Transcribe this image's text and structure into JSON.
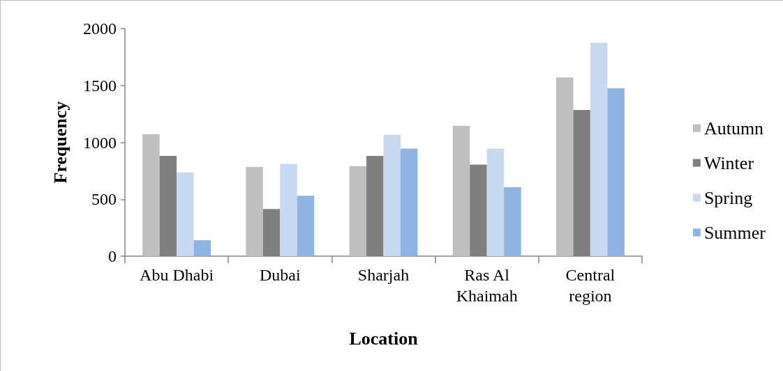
{
  "chart_data": {
    "type": "bar",
    "xlabel": "Location",
    "ylabel": "Frequency",
    "categories": [
      "Abu Dhabi",
      "Dubai",
      "Sharjah",
      "Ras Al Khaimah",
      "Central region"
    ],
    "series": [
      {
        "name": "Autumn",
        "color": "#bfbfbf",
        "values": [
          1070,
          785,
          790,
          1145,
          1570
        ]
      },
      {
        "name": "Winter",
        "color": "#7f7f7f",
        "values": [
          880,
          415,
          880,
          805,
          1285
        ]
      },
      {
        "name": "Spring",
        "color": "#c6d9f1",
        "values": [
          735,
          810,
          1065,
          945,
          1875
        ]
      },
      {
        "name": "Summer",
        "color": "#8eb4e3",
        "values": [
          140,
          530,
          945,
          605,
          1475
        ]
      }
    ],
    "ylim": [
      0,
      2000
    ],
    "yticks": [
      0,
      500,
      1000,
      1500,
      2000
    ],
    "grid": false,
    "legend": "right"
  }
}
